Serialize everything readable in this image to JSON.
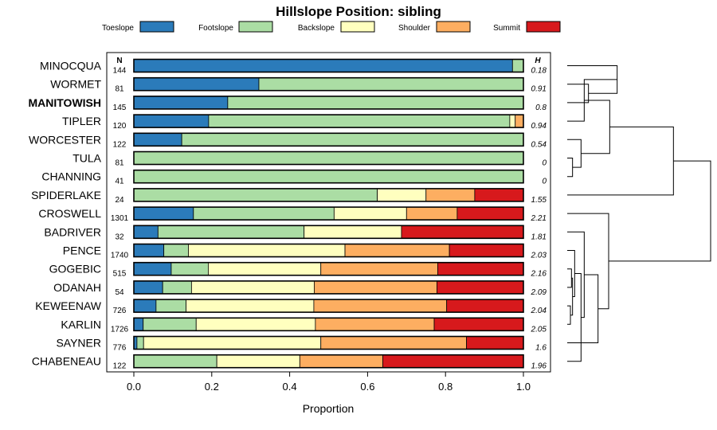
{
  "chart_data": {
    "type": "bar",
    "orientation": "horizontal",
    "stacked": true,
    "title": "Hillslope Position: sibling",
    "xlabel": "Proportion",
    "ylabel": "",
    "xlim": [
      0,
      1
    ],
    "x_ticks": [
      "0.0",
      "0.2",
      "0.4",
      "0.6",
      "0.8",
      "1.0"
    ],
    "x_tick_values": [
      0,
      0.2,
      0.4,
      0.6,
      0.8,
      1.0
    ],
    "n_header": "N",
    "h_header": "H",
    "highlight": "MANITOWISH",
    "legend": [
      {
        "name": "Toeslope",
        "color": "#2B7BBA"
      },
      {
        "name": "Footslope",
        "color": "#ABDDA4"
      },
      {
        "name": "Backslope",
        "color": "#FFFFBF"
      },
      {
        "name": "Shoulder",
        "color": "#FDAE61"
      },
      {
        "name": "Summit",
        "color": "#D7191C"
      }
    ],
    "categories": [
      "MINOCQUA",
      "WORMET",
      "MANITOWISH",
      "TIPLER",
      "WORCESTER",
      "TULA",
      "CHANNING",
      "SPIDERLAKE",
      "CROSWELL",
      "BADRIVER",
      "PENCE",
      "GOGEBIC",
      "ODANAH",
      "KEWEENAW",
      "KARLIN",
      "SAYNER",
      "CHABENEAU"
    ],
    "n": [
      "144",
      "81",
      "145",
      "120",
      "122",
      "81",
      "41",
      "24",
      "1301",
      "32",
      "1740",
      "515",
      "54",
      "726",
      "1726",
      "776",
      "122"
    ],
    "h": [
      "0.18",
      "0.91",
      "0.8",
      "0.94",
      "0.54",
      "0",
      "0",
      "1.55",
      "2.21",
      "1.81",
      "2.03",
      "2.16",
      "2.09",
      "2.04",
      "2.05",
      "1.6",
      "1.96"
    ],
    "series": [
      {
        "name": "Toeslope",
        "values": [
          0.972,
          0.321,
          0.241,
          0.192,
          0.123,
          0,
          0,
          0,
          0.153,
          0.062,
          0.077,
          0.096,
          0.074,
          0.057,
          0.024,
          0.008,
          0
        ]
      },
      {
        "name": "Footslope",
        "values": [
          0.028,
          0.679,
          0.759,
          0.773,
          0.877,
          1.0,
          1.0,
          0.625,
          0.361,
          0.375,
          0.063,
          0.095,
          0.074,
          0.077,
          0.136,
          0.017,
          0.213
        ]
      },
      {
        "name": "Backslope",
        "values": [
          0,
          0,
          0,
          0.014,
          0,
          0,
          0,
          0.125,
          0.186,
          0.25,
          0.402,
          0.289,
          0.315,
          0.328,
          0.306,
          0.455,
          0.213
        ]
      },
      {
        "name": "Shoulder",
        "values": [
          0,
          0,
          0,
          0.021,
          0,
          0,
          0,
          0.125,
          0.13,
          0,
          0.268,
          0.3,
          0.315,
          0.341,
          0.305,
          0.374,
          0.213
        ]
      },
      {
        "name": "Summit",
        "values": [
          0,
          0,
          0,
          0,
          0,
          0,
          0,
          0.125,
          0.17,
          0.313,
          0.19,
          0.22,
          0.222,
          0.197,
          0.229,
          0.146,
          0.361
        ]
      }
    ],
    "dendrogram": [
      {
        "a": 1,
        "b": 2,
        "h": 0.2
      },
      {
        "a": 0,
        "b": 17,
        "h": 0.47
      },
      {
        "a": 3,
        "b": 18,
        "h": 0.16
      },
      {
        "a": 5,
        "b": 6,
        "h": 0.05
      },
      {
        "a": 4,
        "b": 20,
        "h": 0.13
      },
      {
        "a": 19,
        "b": 21,
        "h": 0.4
      },
      {
        "a": 22,
        "b": 7,
        "h": 1.0
      },
      {
        "a": 11,
        "b": 12,
        "h": 0.04
      },
      {
        "a": 13,
        "b": 14,
        "h": 0.03
      },
      {
        "a": 24,
        "b": 25,
        "h": 0.05
      },
      {
        "a": 10,
        "b": 26,
        "h": 0.07
      },
      {
        "a": 27,
        "b": 16,
        "h": 0.13
      },
      {
        "a": 28,
        "b": 9,
        "h": 0.16
      },
      {
        "a": 29,
        "b": 15,
        "h": 0.29
      },
      {
        "a": 8,
        "b": 30,
        "h": 0.39
      },
      {
        "a": 23,
        "b": 31,
        "h": 1.35
      }
    ]
  }
}
